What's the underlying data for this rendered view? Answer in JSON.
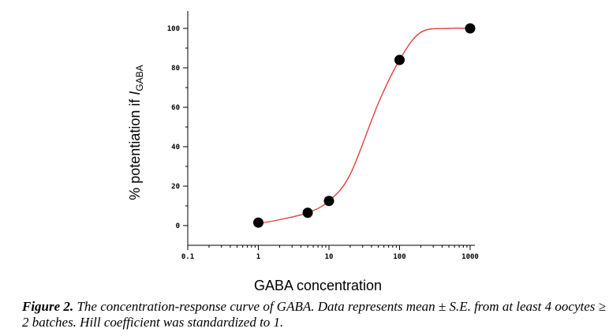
{
  "chart_data": {
    "type": "scatter",
    "xlabel": "GABA concentration",
    "ylabel_prefix": "% potentiation if ",
    "ylabel_italic": "I",
    "ylabel_subscript": "GABA",
    "xscale": "log",
    "xlim": [
      0.1,
      1000
    ],
    "ylim": [
      -5,
      108
    ],
    "xticks": [
      0.1,
      1,
      10,
      100,
      1000
    ],
    "xtick_labels": [
      "0.1",
      "1",
      "10",
      "100",
      "1000"
    ],
    "yticks": [
      0,
      20,
      40,
      60,
      80,
      100
    ],
    "ytick_labels": [
      "0",
      "20",
      "40",
      "60",
      "80",
      "100"
    ],
    "grid": false,
    "series": [
      {
        "x": [
          1,
          5,
          10,
          100,
          1000
        ],
        "y": [
          1.5,
          6.5,
          12.5,
          84,
          100
        ],
        "marker_color": "#000000"
      }
    ],
    "fit_curve": {
      "color": "#e04040",
      "x": [
        1,
        2,
        5,
        10,
        20,
        50,
        100,
        200,
        500,
        1000
      ],
      "y": [
        1,
        3,
        6.5,
        12.5,
        26,
        62,
        84,
        98,
        100,
        100
      ]
    }
  },
  "caption": {
    "label": "Figure 2.",
    "text": " The concentration-response curve of GABA. Data represents mean ± S.E. from at least 4 oocytes ≥ 2 batches. Hill coefficient was standardized to 1."
  }
}
